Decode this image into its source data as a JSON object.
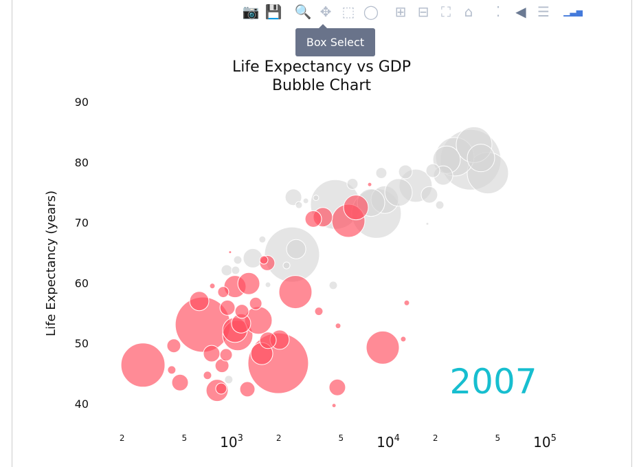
{
  "toolbar": {
    "buttons": [
      {
        "icon": "camera-icon",
        "label": "Download plot as png"
      },
      {
        "icon": "save-icon",
        "label": "Save"
      },
      {
        "icon": "zoom-icon",
        "label": "Zoom"
      },
      {
        "icon": "pan-icon",
        "label": "Pan"
      },
      {
        "icon": "box-select-icon",
        "label": "Box Select"
      },
      {
        "icon": "lasso-icon",
        "label": "Lasso Select"
      },
      {
        "icon": "zoom-in-icon",
        "label": "Zoom in"
      },
      {
        "icon": "zoom-out-icon",
        "label": "Zoom out"
      },
      {
        "icon": "autoscale-icon",
        "label": "Autoscale"
      },
      {
        "icon": "home-icon",
        "label": "Reset axes"
      },
      {
        "icon": "spike-lines-icon",
        "label": "Toggle Spike Lines"
      },
      {
        "icon": "hover-closest-icon",
        "label": "Show closest data on hover"
      },
      {
        "icon": "hover-compare-icon",
        "label": "Compare data on hover"
      },
      {
        "icon": "plotly-logo-icon",
        "label": "Produced with Plotly"
      }
    ],
    "tooltip": "Box Select"
  },
  "colors": {
    "selected": "#ff4d5e",
    "unselected": "#d4d4d4",
    "annotation": "#17becf",
    "text": "#111111"
  },
  "chart_data": {
    "type": "scatter",
    "title_line1": "Life Expectancy vs GDP",
    "title_line2": "Bubble Chart",
    "xlabel": "",
    "ylabel": "Life Expectancy (years)",
    "xscale": "log",
    "xlim": [
      160,
      126000
    ],
    "ylim": [
      36,
      92
    ],
    "yticks": [
      40,
      50,
      60,
      70,
      80,
      90
    ],
    "xticks": [
      {
        "value": 200,
        "label": "2",
        "sup": ""
      },
      {
        "value": 500,
        "label": "5",
        "sup": ""
      },
      {
        "value": 1000,
        "label": "10",
        "sup": "3"
      },
      {
        "value": 2000,
        "label": "2",
        "sup": ""
      },
      {
        "value": 5000,
        "label": "5",
        "sup": ""
      },
      {
        "value": 10000,
        "label": "10",
        "sup": "4"
      },
      {
        "value": 20000,
        "label": "2",
        "sup": ""
      },
      {
        "value": 50000,
        "label": "5",
        "sup": ""
      },
      {
        "value": 100000,
        "label": "10",
        "sup": "5"
      }
    ],
    "annotation": "2007",
    "series": [
      {
        "name": "unselected",
        "points": [
          [
            2432,
            64.7,
            40
          ],
          [
            2585,
            65.6,
            14
          ],
          [
            2483,
            74.2,
            12
          ],
          [
            4592,
            73.0,
            36
          ],
          [
            8414,
            71.5,
            36
          ],
          [
            9506,
            73.8,
            20
          ],
          [
            7770,
            73.3,
            20
          ],
          [
            11640,
            75.0,
            20
          ],
          [
            14970,
            76.1,
            24
          ],
          [
            18320,
            74.6,
            12
          ],
          [
            21330,
            72.9,
            6
          ],
          [
            22440,
            77.8,
            14
          ],
          [
            33590,
            80.4,
            44
          ],
          [
            43240,
            78.2,
            30
          ],
          [
            26600,
            80.9,
            28
          ],
          [
            35320,
            82.9,
            26
          ],
          [
            23600,
            80.4,
            20
          ],
          [
            39080,
            80.7,
            20
          ],
          [
            19280,
            78.6,
            10
          ],
          [
            9036,
            78.2,
            8
          ],
          [
            4457,
            59.6,
            6
          ],
          [
            959,
            44.0,
            6
          ],
          [
            1061,
            62.1,
            6
          ],
          [
            931,
            62.1,
            8
          ],
          [
            1095,
            63.8,
            6
          ],
          [
            1367,
            64.1,
            14
          ],
          [
            1708,
            59.7,
            4
          ],
          [
            1573,
            67.2,
            5
          ],
          [
            2692,
            72.9,
            5
          ],
          [
            2979,
            73.6,
            4
          ],
          [
            3459,
            74.1,
            4
          ],
          [
            5915,
            76.4,
            8
          ],
          [
            12880,
            78.4,
            10
          ],
          [
            17780,
            69.8,
            2
          ],
          [
            2244,
            62.9,
            5
          ]
        ]
      },
      {
        "name": "selected",
        "points": [
          [
            272,
            46.4,
            32
          ],
          [
            428,
            49.6,
            10
          ],
          [
            415,
            45.6,
            6
          ],
          [
            469,
            43.5,
            12
          ],
          [
            622,
            57.0,
            14
          ],
          [
            655,
            53.1,
            40
          ],
          [
            746,
            48.3,
            12
          ],
          [
            702,
            44.7,
            6
          ],
          [
            809,
            42.2,
            16
          ],
          [
            859,
            42.5,
            8
          ],
          [
            869,
            46.3,
            10
          ],
          [
            923,
            48.1,
            9
          ],
          [
            885,
            58.5,
            8
          ],
          [
            754,
            59.5,
            4
          ],
          [
            942,
            55.9,
            11
          ],
          [
            1052,
            59.4,
            16
          ],
          [
            1095,
            51.3,
            22
          ],
          [
            1052,
            52.2,
            18
          ],
          [
            1151,
            53.3,
            14
          ],
          [
            1164,
            55.3,
            10
          ],
          [
            1288,
            59.9,
            16
          ],
          [
            1426,
            56.6,
            9
          ],
          [
            1483,
            53.8,
            20
          ],
          [
            1262,
            42.4,
            11
          ],
          [
            1560,
            48.3,
            16
          ],
          [
            1708,
            50.5,
            12
          ],
          [
            1986,
            46.7,
            44
          ],
          [
            2027,
            50.6,
            14
          ],
          [
            2557,
            58.5,
            24
          ],
          [
            1690,
            63.3,
            11
          ],
          [
            3606,
            55.3,
            6
          ],
          [
            4733,
            42.7,
            12
          ],
          [
            4786,
            52.9,
            4
          ],
          [
            4508,
            39.7,
            3
          ],
          [
            9226,
            49.3,
            24
          ],
          [
            13130,
            56.7,
            4
          ],
          [
            12480,
            50.7,
            4
          ],
          [
            979,
            65.1,
            2
          ],
          [
            1607,
            63.8,
            6
          ],
          [
            3828,
            70.9,
            14
          ],
          [
            5570,
            70.3,
            24
          ],
          [
            6223,
            72.5,
            18
          ],
          [
            7615,
            76.3,
            3
          ],
          [
            3327,
            70.6,
            12
          ]
        ]
      }
    ]
  }
}
